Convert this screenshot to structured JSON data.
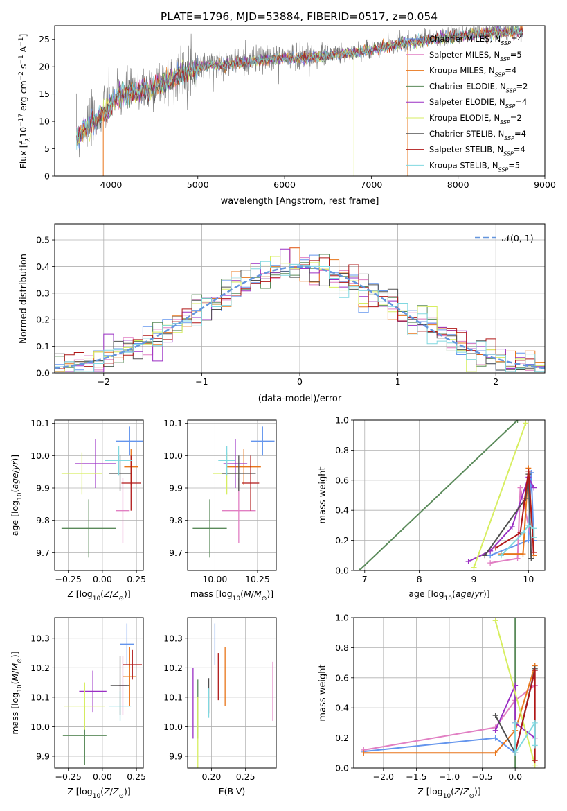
{
  "figure": {
    "title": "PLATE=1796, MJD=53884, FIBERID=0517, z=0.054"
  },
  "series_styles": [
    {
      "name": "Chabrier MILES, N",
      "sub": "SSP",
      "tail": "=4",
      "color": "#6495ed"
    },
    {
      "name": "Salpeter MILES, N",
      "sub": "SSP",
      "tail": "=5",
      "color": "#e17fc3"
    },
    {
      "name": "Kroupa MILES, N",
      "sub": "SSP",
      "tail": "=4",
      "color": "#e8751a"
    },
    {
      "name": "Chabrier ELODIE, N",
      "sub": "SSP",
      "tail": "=2",
      "color": "#5a8a5a"
    },
    {
      "name": "Salpeter ELODIE, N",
      "sub": "SSP",
      "tail": "=4",
      "color": "#9a2fc4"
    },
    {
      "name": "Kroupa ELODIE, N",
      "sub": "SSP",
      "tail": "=2",
      "color": "#d7ee60"
    },
    {
      "name": "Chabrier STELIB, N",
      "sub": "SSP",
      "tail": "=4",
      "color": "#505050"
    },
    {
      "name": "Salpeter STELIB, N",
      "sub": "SSP",
      "tail": "=4",
      "color": "#b01818"
    },
    {
      "name": "Kroupa STELIB, N",
      "sub": "SSP",
      "tail": "=5",
      "color": "#80d8e0"
    }
  ],
  "chart_data": [
    {
      "id": "spectrum",
      "type": "line",
      "xlabel": "wavelength [Angstrom, rest frame]",
      "ylabel_parts": [
        "Flux [f",
        "λ",
        "10",
        "−17",
        " erg cm",
        "−2",
        " s",
        "−1",
        " A",
        "−1",
        "]"
      ],
      "xlim": [
        3350,
        9000
      ],
      "ylim": [
        0,
        27.5
      ],
      "xticks": [
        4000,
        5000,
        6000,
        7000,
        8000,
        9000
      ],
      "yticks": [
        0,
        5,
        10,
        15,
        20,
        25
      ],
      "grid": false,
      "legend_position": "lower-right",
      "continuum": {
        "x": [
          3600,
          3700,
          3800,
          3900,
          4000,
          4100,
          4200,
          4300,
          4500,
          4700,
          4900,
          5100,
          5300,
          5500,
          5800,
          6000,
          6300,
          6600,
          6900,
          7200,
          7500,
          7800,
          8100,
          8400,
          8700
        ],
        "y": [
          7,
          9,
          10,
          11.5,
          13.5,
          15,
          15.5,
          15.5,
          16.5,
          18,
          19.5,
          20.5,
          20.5,
          21,
          21.5,
          21.8,
          22,
          22.5,
          23,
          24,
          24.8,
          25.5,
          26,
          26.5,
          26.6
        ]
      }
    },
    {
      "id": "residuals",
      "type": "histogram",
      "xlabel": "(data-model)/error",
      "ylabel": "Normed distribution",
      "xlim": [
        -2.5,
        2.5
      ],
      "ylim": [
        0,
        0.56
      ],
      "xticks": [
        -2,
        -1,
        0,
        1,
        2
      ],
      "yticks": [
        0.0,
        0.1,
        0.2,
        0.3,
        0.4,
        0.5
      ],
      "grid": true,
      "legend": "𝒩(0, 1)",
      "bin_width": 0.1,
      "bin_start": -2.5
    },
    {
      "id": "age-vs-Z",
      "type": "errorbar",
      "xlabel": "Z [log10(Z/Z⊙)]",
      "ylabel": "age  [log10(age/yr)]",
      "xlim": [
        -0.35,
        0.3
      ],
      "ylim": [
        9.645,
        10.11
      ],
      "xticks": [
        -0.25,
        0.0,
        0.25
      ],
      "yticks": [
        9.7,
        9.8,
        9.9,
        10.0,
        10.1
      ],
      "points": [
        {
          "x": 0.2,
          "xerr": 0.1,
          "y": 10.045,
          "yerr": 0.045
        },
        {
          "x": 0.15,
          "xerr": 0.05,
          "y": 9.83,
          "yerr": 0.1
        },
        {
          "x": 0.21,
          "xerr": 0.05,
          "y": 9.965,
          "yerr": 0.055
        },
        {
          "x": -0.1,
          "xerr": 0.2,
          "y": 9.775,
          "yerr": 0.09
        },
        {
          "x": -0.05,
          "xerr": 0.15,
          "y": 9.975,
          "yerr": 0.075
        },
        {
          "x": -0.15,
          "xerr": 0.15,
          "y": 9.945,
          "yerr": 0.065
        },
        {
          "x": 0.13,
          "xerr": 0.08,
          "y": 9.945,
          "yerr": 0.055
        },
        {
          "x": 0.21,
          "xerr": 0.07,
          "y": 9.915,
          "yerr": 0.085
        },
        {
          "x": 0.12,
          "xerr": 0.1,
          "y": 9.985,
          "yerr": 0.045
        }
      ]
    },
    {
      "id": "age-vs-mass",
      "type": "errorbar",
      "xlabel": "mass [log10(M/M⊙)]",
      "ylabel": "",
      "xlim": [
        9.84,
        10.36
      ],
      "ylim": [
        9.645,
        10.11
      ],
      "xticks": [
        10.0,
        10.25
      ],
      "yticks": [
        9.7,
        9.8,
        9.9,
        10.0,
        10.1
      ],
      "points": [
        {
          "x": 10.28,
          "xerr": 0.07,
          "y": 10.045,
          "yerr": 0.045
        },
        {
          "x": 10.14,
          "xerr": 0.1,
          "y": 9.83,
          "yerr": 0.1
        },
        {
          "x": 10.17,
          "xerr": 0.1,
          "y": 9.965,
          "yerr": 0.055
        },
        {
          "x": 9.97,
          "xerr": 0.1,
          "y": 9.775,
          "yerr": 0.09
        },
        {
          "x": 10.12,
          "xerr": 0.07,
          "y": 9.975,
          "yerr": 0.075
        },
        {
          "x": 10.07,
          "xerr": 0.08,
          "y": 9.945,
          "yerr": 0.065
        },
        {
          "x": 10.14,
          "xerr": 0.1,
          "y": 9.945,
          "yerr": 0.055
        },
        {
          "x": 10.21,
          "xerr": 0.05,
          "y": 9.915,
          "yerr": 0.085
        },
        {
          "x": 10.07,
          "xerr": 0.05,
          "y": 9.985,
          "yerr": 0.045
        }
      ]
    },
    {
      "id": "weight-vs-age",
      "type": "line",
      "xlabel": "age  [log10(age/yr)]",
      "ylabel": "mass weight",
      "xlim": [
        6.8,
        10.3
      ],
      "ylim": [
        0,
        1
      ],
      "xticks": [
        7,
        8,
        9,
        10
      ],
      "yticks": [
        0.0,
        0.2,
        0.4,
        0.6,
        0.8,
        1.0
      ],
      "series": [
        {
          "x": [
            9.3,
            10.0,
            10.05,
            10.1
          ],
          "y": [
            0.1,
            0.2,
            0.65,
            0.2
          ]
        },
        {
          "x": [
            9.3,
            9.8,
            9.85,
            10.0,
            10.1
          ],
          "y": [
            0.05,
            0.08,
            0.55,
            0.3,
            0.1
          ]
        },
        {
          "x": [
            9.5,
            9.9,
            10.0,
            10.1
          ],
          "y": [
            0.11,
            0.11,
            0.68,
            0.1
          ]
        },
        {
          "x": [
            6.9,
            9.8
          ],
          "y": [
            0.0,
            1.0
          ]
        },
        {
          "x": [
            8.9,
            9.3,
            9.7,
            10.0,
            10.1
          ],
          "y": [
            0.06,
            0.13,
            0.29,
            0.62,
            0.55
          ]
        },
        {
          "x": [
            9.0,
            9.95
          ],
          "y": [
            0.02,
            0.98
          ]
        },
        {
          "x": [
            9.2,
            9.95,
            10.0,
            10.05
          ],
          "y": [
            0.1,
            0.48,
            0.64,
            0.08
          ]
        },
        {
          "x": [
            9.4,
            9.85,
            10.0,
            10.1
          ],
          "y": [
            0.15,
            0.25,
            0.66,
            0.12
          ]
        },
        {
          "x": [
            9.5,
            9.9,
            10.0,
            10.1,
            10.1
          ],
          "y": [
            0.1,
            0.25,
            0.3,
            0.28,
            0.22
          ]
        }
      ]
    },
    {
      "id": "mass-vs-Z",
      "type": "errorbar",
      "xlabel": "Z [log10(Z/Z⊙)]",
      "ylabel": "mass [log10(M/M⊙)]",
      "xlim": [
        -0.35,
        0.3
      ],
      "ylim": [
        9.86,
        10.37
      ],
      "xticks": [
        -0.25,
        0.0,
        0.25
      ],
      "yticks": [
        9.9,
        10.0,
        10.1,
        10.2,
        10.3
      ],
      "points": [
        {
          "x": 0.18,
          "xerr": 0.05,
          "y": 10.28,
          "yerr": 0.07
        },
        {
          "x": 0.15,
          "xerr": 0.03,
          "y": 10.14,
          "yerr": 0.1
        },
        {
          "x": 0.2,
          "xerr": 0.05,
          "y": 10.17,
          "yerr": 0.1
        },
        {
          "x": -0.13,
          "xerr": 0.16,
          "y": 9.97,
          "yerr": 0.1
        },
        {
          "x": -0.07,
          "xerr": 0.1,
          "y": 10.12,
          "yerr": 0.07
        },
        {
          "x": -0.13,
          "xerr": 0.15,
          "y": 10.07,
          "yerr": 0.08
        },
        {
          "x": 0.13,
          "xerr": 0.07,
          "y": 10.14,
          "yerr": 0.1
        },
        {
          "x": 0.22,
          "xerr": 0.07,
          "y": 10.21,
          "yerr": 0.05
        },
        {
          "x": 0.13,
          "xerr": 0.08,
          "y": 10.07,
          "yerr": 0.05
        }
      ]
    },
    {
      "id": "mass-vs-ebv",
      "type": "errorbar",
      "xlabel": "E(B-V)",
      "ylabel": "",
      "xlim": [
        0.165,
        0.295
      ],
      "ylim": [
        9.86,
        10.37
      ],
      "xticks": [
        0.2,
        0.25
      ],
      "yticks": [
        9.9,
        10.0,
        10.1,
        10.2,
        10.3
      ],
      "points": [
        {
          "x": 0.205,
          "y": 10.28,
          "yerr": 0.07
        },
        {
          "x": 0.29,
          "y": 10.12,
          "yerr": 0.1
        },
        {
          "x": 0.22,
          "y": 10.17,
          "yerr": 0.1
        },
        {
          "x": 0.18,
          "y": 10.06,
          "yerr": 0.1
        },
        {
          "x": 0.173,
          "y": 10.08,
          "yerr": 0.12
        },
        {
          "x": 0.18,
          "y": 9.98,
          "yerr": 0.12
        },
        {
          "x": 0.196,
          "y": 10.105,
          "yerr": 0.06
        },
        {
          "x": 0.21,
          "y": 10.17,
          "yerr": 0.08
        },
        {
          "x": 0.196,
          "y": 10.08,
          "yerr": 0.05
        }
      ]
    },
    {
      "id": "weight-vs-Z",
      "type": "line",
      "xlabel": "Z [log10(Z/Z⊙)]",
      "ylabel": "mass weight",
      "xlim": [
        -2.45,
        0.45
      ],
      "ylim": [
        0,
        1
      ],
      "xticks": [
        -2.0,
        -1.5,
        -1.0,
        -0.5,
        0.0
      ],
      "yticks": [
        0.0,
        0.2,
        0.4,
        0.6,
        0.8,
        1.0
      ],
      "series": [
        {
          "x": [
            -2.3,
            -0.3,
            0.0,
            0.3
          ],
          "y": [
            0.11,
            0.2,
            0.1,
            0.65
          ]
        },
        {
          "x": [
            -2.3,
            -0.3,
            0.0,
            0.3
          ],
          "y": [
            0.12,
            0.27,
            0.45,
            0.55
          ]
        },
        {
          "x": [
            -2.3,
            -0.3,
            0.0,
            0.3
          ],
          "y": [
            0.1,
            0.1,
            0.25,
            0.68
          ]
        },
        {
          "x": [
            0.0,
            0.0
          ],
          "y": [
            0.0,
            1.0
          ]
        },
        {
          "x": [
            -0.3,
            0.0,
            0.0,
            0.3
          ],
          "y": [
            0.25,
            0.55,
            0.3,
            0.2
          ]
        },
        {
          "x": [
            -0.3,
            0.3
          ],
          "y": [
            0.98,
            0.02
          ]
        },
        {
          "x": [
            -0.3,
            0.0,
            0.3
          ],
          "y": [
            0.35,
            0.1,
            0.66
          ]
        },
        {
          "x": [
            0.0,
            0.3,
            0.3
          ],
          "y": [
            0.1,
            0.65,
            0.05
          ]
        },
        {
          "x": [
            0.0,
            0.0,
            0.3,
            0.3
          ],
          "y": [
            0.3,
            0.1,
            0.3,
            0.15
          ]
        }
      ]
    }
  ]
}
